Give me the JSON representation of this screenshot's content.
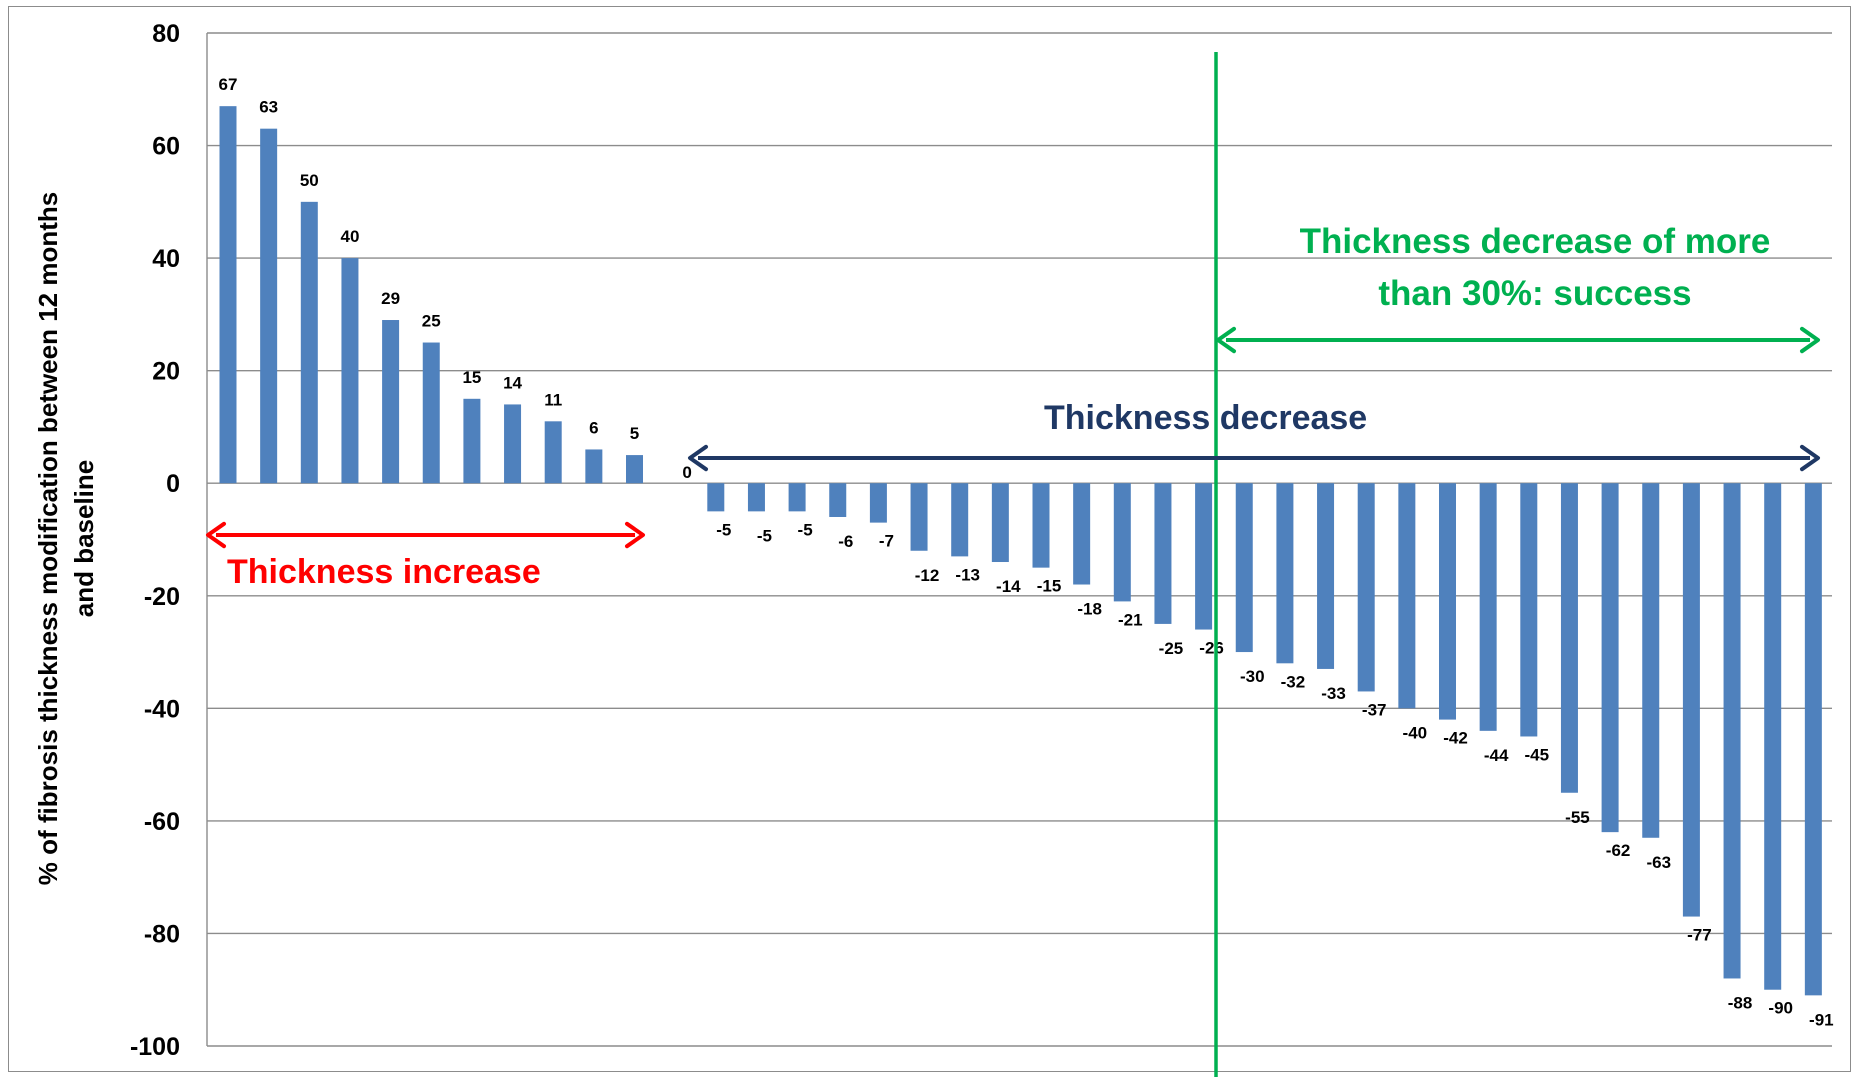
{
  "chart_data": {
    "type": "bar",
    "ylabel": "% of fibrosis thickness modification between 12 months and baseline",
    "ylabel_lines": [
      "% of fibrosis thickness modification  between 12 months",
      "and baseline"
    ],
    "ylim": [
      -100,
      80
    ],
    "yticks": [
      80,
      60,
      40,
      20,
      0,
      -20,
      -40,
      -60,
      -80,
      -100
    ],
    "grid": true,
    "bar_color": "#4f81bd",
    "values": [
      67,
      63,
      50,
      40,
      29,
      25,
      15,
      14,
      11,
      6,
      5,
      0,
      -5,
      -5,
      -5,
      -6,
      -7,
      -12,
      -13,
      -14,
      -15,
      -18,
      -21,
      -25,
      -26,
      -30,
      -32,
      -33,
      -37,
      -40,
      -42,
      -44,
      -45,
      -55,
      -62,
      -63,
      -77,
      -88,
      -90,
      -91
    ],
    "annotations": {
      "increase": {
        "text": "Thickness increase",
        "color": "#ff0000"
      },
      "decrease": {
        "text": "Thickness decrease",
        "color": "#1f3864"
      },
      "success": {
        "lines": [
          "Thickness decrease of more",
          "than 30%: success"
        ],
        "color": "#00b050"
      },
      "success_threshold_color": "#00b050"
    }
  }
}
